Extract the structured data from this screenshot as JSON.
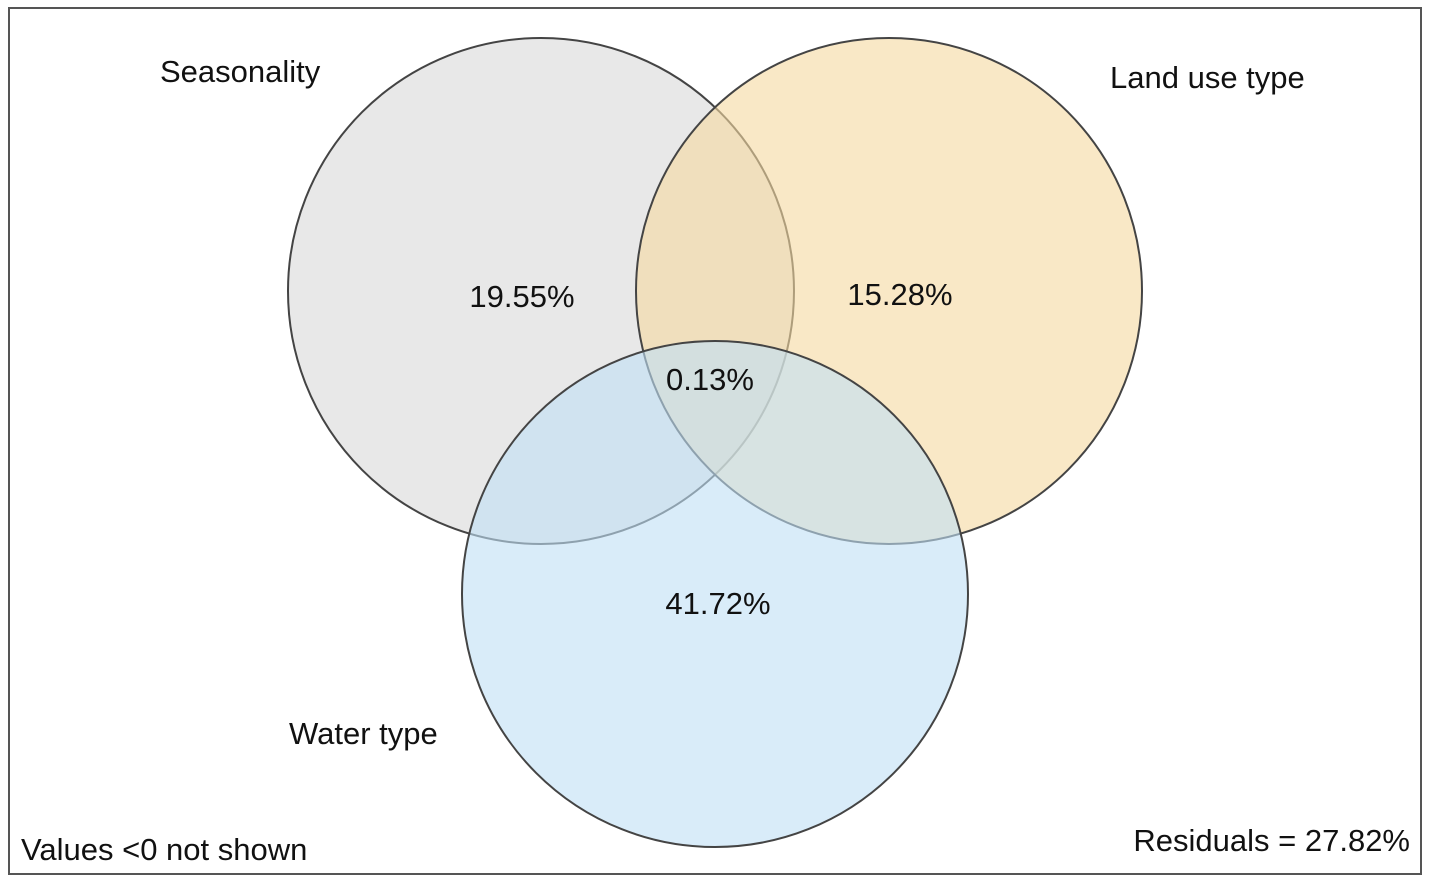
{
  "sets": [
    {
      "name": "Seasonality",
      "color": "#d9d9d9"
    },
    {
      "name": "Land use type",
      "color": "#f5d9a0"
    },
    {
      "name": "Water type",
      "color": "#bfe0f5"
    }
  ],
  "values": {
    "seasonality_only": "19.55%",
    "land_use_only": "15.28%",
    "all_three": "0.13%",
    "water_only": "41.72%"
  },
  "footer": {
    "note": "Values <0 not shown",
    "residuals": "Residuals = 27.82%"
  }
}
